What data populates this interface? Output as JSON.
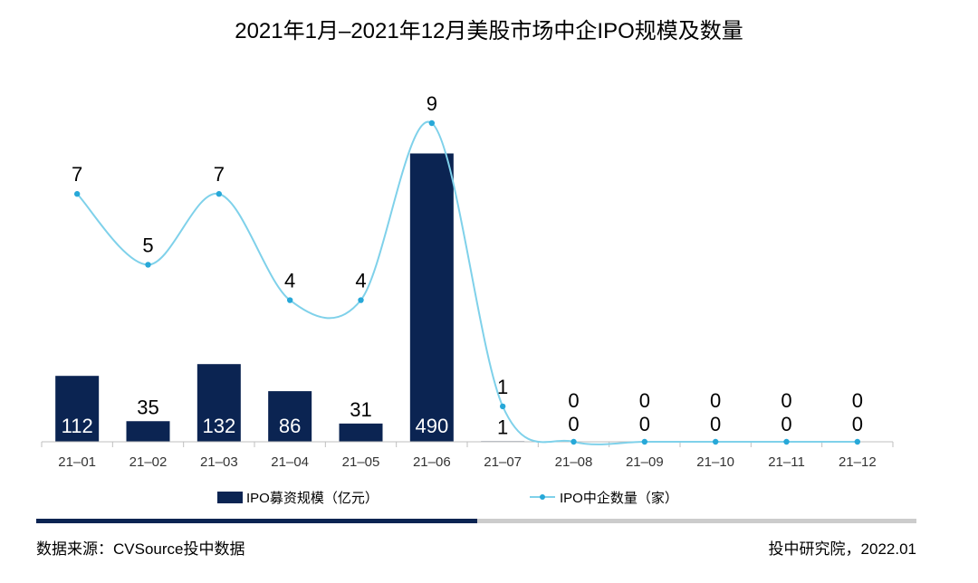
{
  "chart_data": {
    "type": "bar",
    "title": "2021年1月–2021年12月美股市场中企IPO规模及数量",
    "categories": [
      "21–01",
      "21–02",
      "21–03",
      "21–04",
      "21–05",
      "21–06",
      "21–07",
      "21–08",
      "21–09",
      "21–10",
      "21–11",
      "21–12"
    ],
    "series": [
      {
        "name": "IPO募资规模（亿元）",
        "type": "bar",
        "values": [
          112,
          35,
          132,
          86,
          31,
          490,
          1,
          0,
          0,
          0,
          0,
          0
        ],
        "color": "#0b2452"
      },
      {
        "name": "IPO中企数量（家）",
        "type": "line",
        "smooth": true,
        "values": [
          7,
          5,
          7,
          4,
          4,
          9,
          1,
          0,
          0,
          0,
          0,
          0
        ],
        "color": "#7fd1ea",
        "marker_color": "#27a8d8"
      }
    ],
    "grid": false,
    "legend_position": "bottom"
  },
  "footer": {
    "source": "数据来源：CVSource投中数据",
    "credit": "投中研究院，2022.01"
  }
}
